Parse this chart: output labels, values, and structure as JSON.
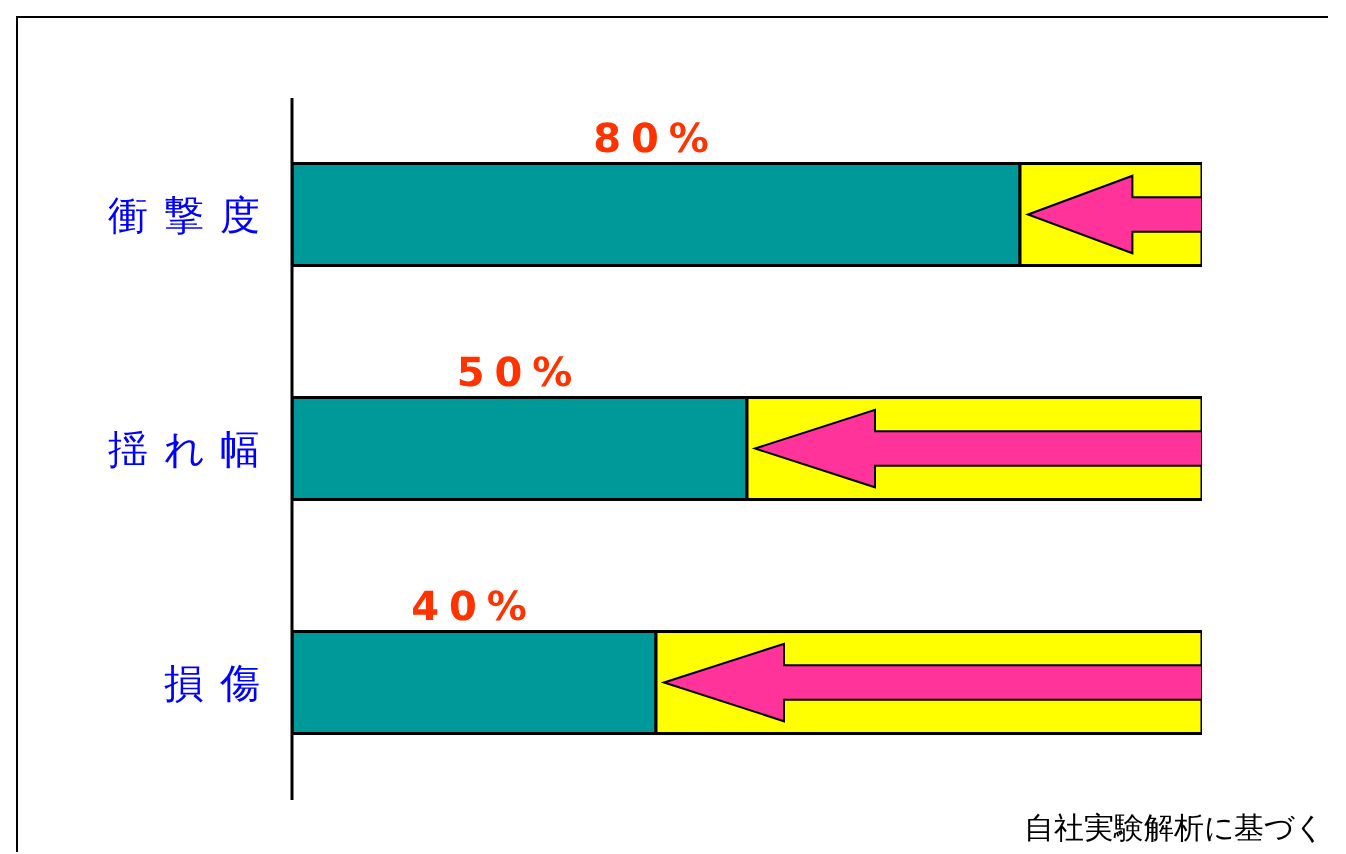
{
  "chart_data": {
    "type": "bar",
    "orientation": "horizontal",
    "stacked": true,
    "xlim": [
      0,
      100
    ],
    "categories": [
      "衝撃度",
      "揺れ幅",
      "損傷"
    ],
    "series": [
      {
        "color": "#009999",
        "values": [
          80,
          50,
          40
        ],
        "value_labels": [
          "80%",
          "50%",
          "40%"
        ]
      },
      {
        "color": "#ffff00",
        "values": [
          20,
          50,
          60
        ]
      }
    ],
    "annotations": [
      "自社実験解析に基づく"
    ]
  }
}
